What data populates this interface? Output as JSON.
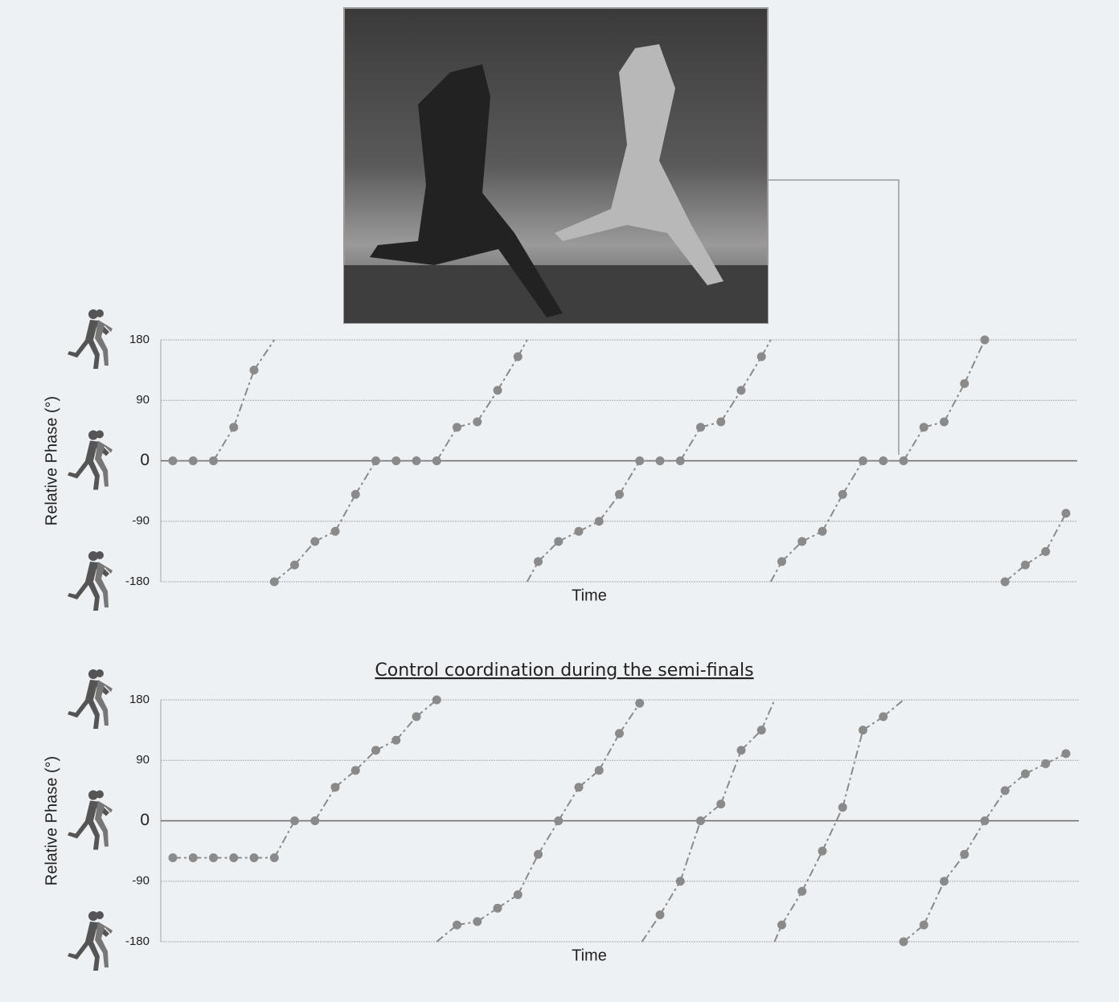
{
  "chart_data": [
    {
      "type": "line",
      "ylabel": "Relative Phase (°)",
      "xlabel": "Time",
      "ylim": [
        -180,
        180
      ],
      "yticks": [
        -180,
        -90,
        0,
        90,
        180
      ],
      "grid": true,
      "series": [
        {
          "color": "#8a8a8a",
          "values": [
            0,
            0,
            0,
            50,
            135,
            -180,
            -155,
            -120,
            -105,
            -50,
            0,
            0,
            0,
            0,
            50,
            58,
            105,
            155,
            -150,
            -120,
            -105,
            -90,
            -50,
            0,
            0,
            0,
            50,
            58,
            105,
            155,
            -150,
            -120,
            -105,
            -50,
            0,
            0,
            0,
            50,
            58,
            115,
            180,
            -180,
            -155,
            -135,
            -78
          ]
        }
      ]
    },
    {
      "type": "line",
      "title": "Control coordination during the semi-finals",
      "ylabel": "Relative Phase (°)",
      "xlabel": "Time",
      "ylim": [
        -180,
        180
      ],
      "yticks": [
        -180,
        -90,
        0,
        90,
        180
      ],
      "grid": true,
      "series": [
        {
          "color": "#8a8a8a",
          "values": [
            -55,
            -55,
            -55,
            -55,
            -55,
            -55,
            0,
            0,
            50,
            75,
            105,
            120,
            155,
            180,
            -155,
            -150,
            -130,
            -110,
            -50,
            0,
            50,
            75,
            130,
            175,
            -140,
            -90,
            0,
            25,
            105,
            135,
            -155,
            -105,
            -45,
            20,
            135,
            155,
            -180,
            -155,
            -90,
            -50,
            0,
            45,
            70,
            85,
            100
          ]
        }
      ]
    }
  ]
}
